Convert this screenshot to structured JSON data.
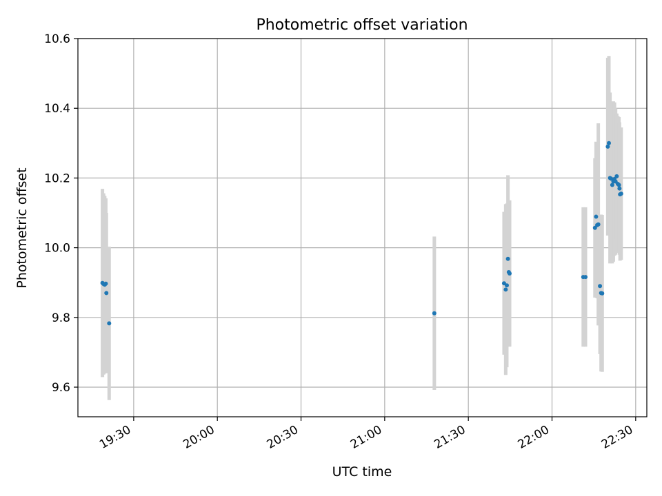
{
  "chart_data": {
    "type": "scatter",
    "title": "Photometric offset variation",
    "xlabel": "UTC time",
    "ylabel": "Photometric offset",
    "x_ticks": [
      "19:30",
      "20:00",
      "20:30",
      "21:00",
      "21:30",
      "22:00",
      "22:30"
    ],
    "y_ticks": [
      "9.6",
      "9.8",
      "10.0",
      "10.2",
      "10.4",
      "10.6"
    ],
    "xlim": [
      "19:10",
      "22:34"
    ],
    "ylim": [
      9.515,
      10.6
    ],
    "grid": true,
    "colors": {
      "point": "#1f77b4",
      "errorbar": "#d3d3d3",
      "grid": "#b0b0b0"
    },
    "points": [
      {
        "x": "19:18:48",
        "y": 9.899,
        "err": 0.27
      },
      {
        "x": "19:19:12",
        "y": 9.896,
        "err": 0.26
      },
      {
        "x": "19:19:36",
        "y": 9.894,
        "err": 0.255
      },
      {
        "x": "19:20:00",
        "y": 9.897,
        "err": 0.245
      },
      {
        "x": "19:20:12",
        "y": 9.87,
        "err": 0.23
      },
      {
        "x": "19:21:12",
        "y": 9.783,
        "err": 0.22
      },
      {
        "x": "21:17:48",
        "y": 9.812,
        "err": 0.22
      },
      {
        "x": "21:42:48",
        "y": 9.898,
        "err": 0.205
      },
      {
        "x": "21:43:24",
        "y": 9.88,
        "err": 0.245
      },
      {
        "x": "21:43:48",
        "y": 9.892,
        "err": 0.235
      },
      {
        "x": "21:44:12",
        "y": 9.968,
        "err": 0.24
      },
      {
        "x": "21:44:30",
        "y": 9.93,
        "err": 0.205
      },
      {
        "x": "21:44:48",
        "y": 9.926,
        "err": 0.21
      },
      {
        "x": "22:11:12",
        "y": 9.916,
        "err": 0.2
      },
      {
        "x": "22:12:00",
        "y": 9.916,
        "err": 0.2
      },
      {
        "x": "22:15:24",
        "y": 10.057,
        "err": 0.2
      },
      {
        "x": "22:15:48",
        "y": 10.089,
        "err": 0.215
      },
      {
        "x": "22:16:12",
        "y": 10.065,
        "err": 0.21
      },
      {
        "x": "22:16:36",
        "y": 10.067,
        "err": 0.29
      },
      {
        "x": "22:17:12",
        "y": 9.89,
        "err": 0.195
      },
      {
        "x": "22:17:36",
        "y": 9.87,
        "err": 0.225
      },
      {
        "x": "22:18:00",
        "y": 9.869,
        "err": 0.225
      },
      {
        "x": "22:20:00",
        "y": 10.29,
        "err": 0.255
      },
      {
        "x": "22:20:24",
        "y": 10.3,
        "err": 0.25
      },
      {
        "x": "22:20:48",
        "y": 10.2,
        "err": 0.245
      },
      {
        "x": "22:21:12",
        "y": 10.198,
        "err": 0.22
      },
      {
        "x": "22:21:36",
        "y": 10.18,
        "err": 0.225
      },
      {
        "x": "22:22:00",
        "y": 10.19,
        "err": 0.23
      },
      {
        "x": "22:22:24",
        "y": 10.197,
        "err": 0.22
      },
      {
        "x": "22:22:48",
        "y": 10.19,
        "err": 0.21
      },
      {
        "x": "22:23:12",
        "y": 10.205,
        "err": 0.18
      },
      {
        "x": "22:23:36",
        "y": 10.183,
        "err": 0.195
      },
      {
        "x": "22:24:00",
        "y": 10.18,
        "err": 0.195
      },
      {
        "x": "22:24:12",
        "y": 10.17,
        "err": 0.19
      },
      {
        "x": "22:24:24",
        "y": 10.153,
        "err": 0.19
      },
      {
        "x": "22:24:48",
        "y": 10.155,
        "err": 0.19
      }
    ]
  }
}
